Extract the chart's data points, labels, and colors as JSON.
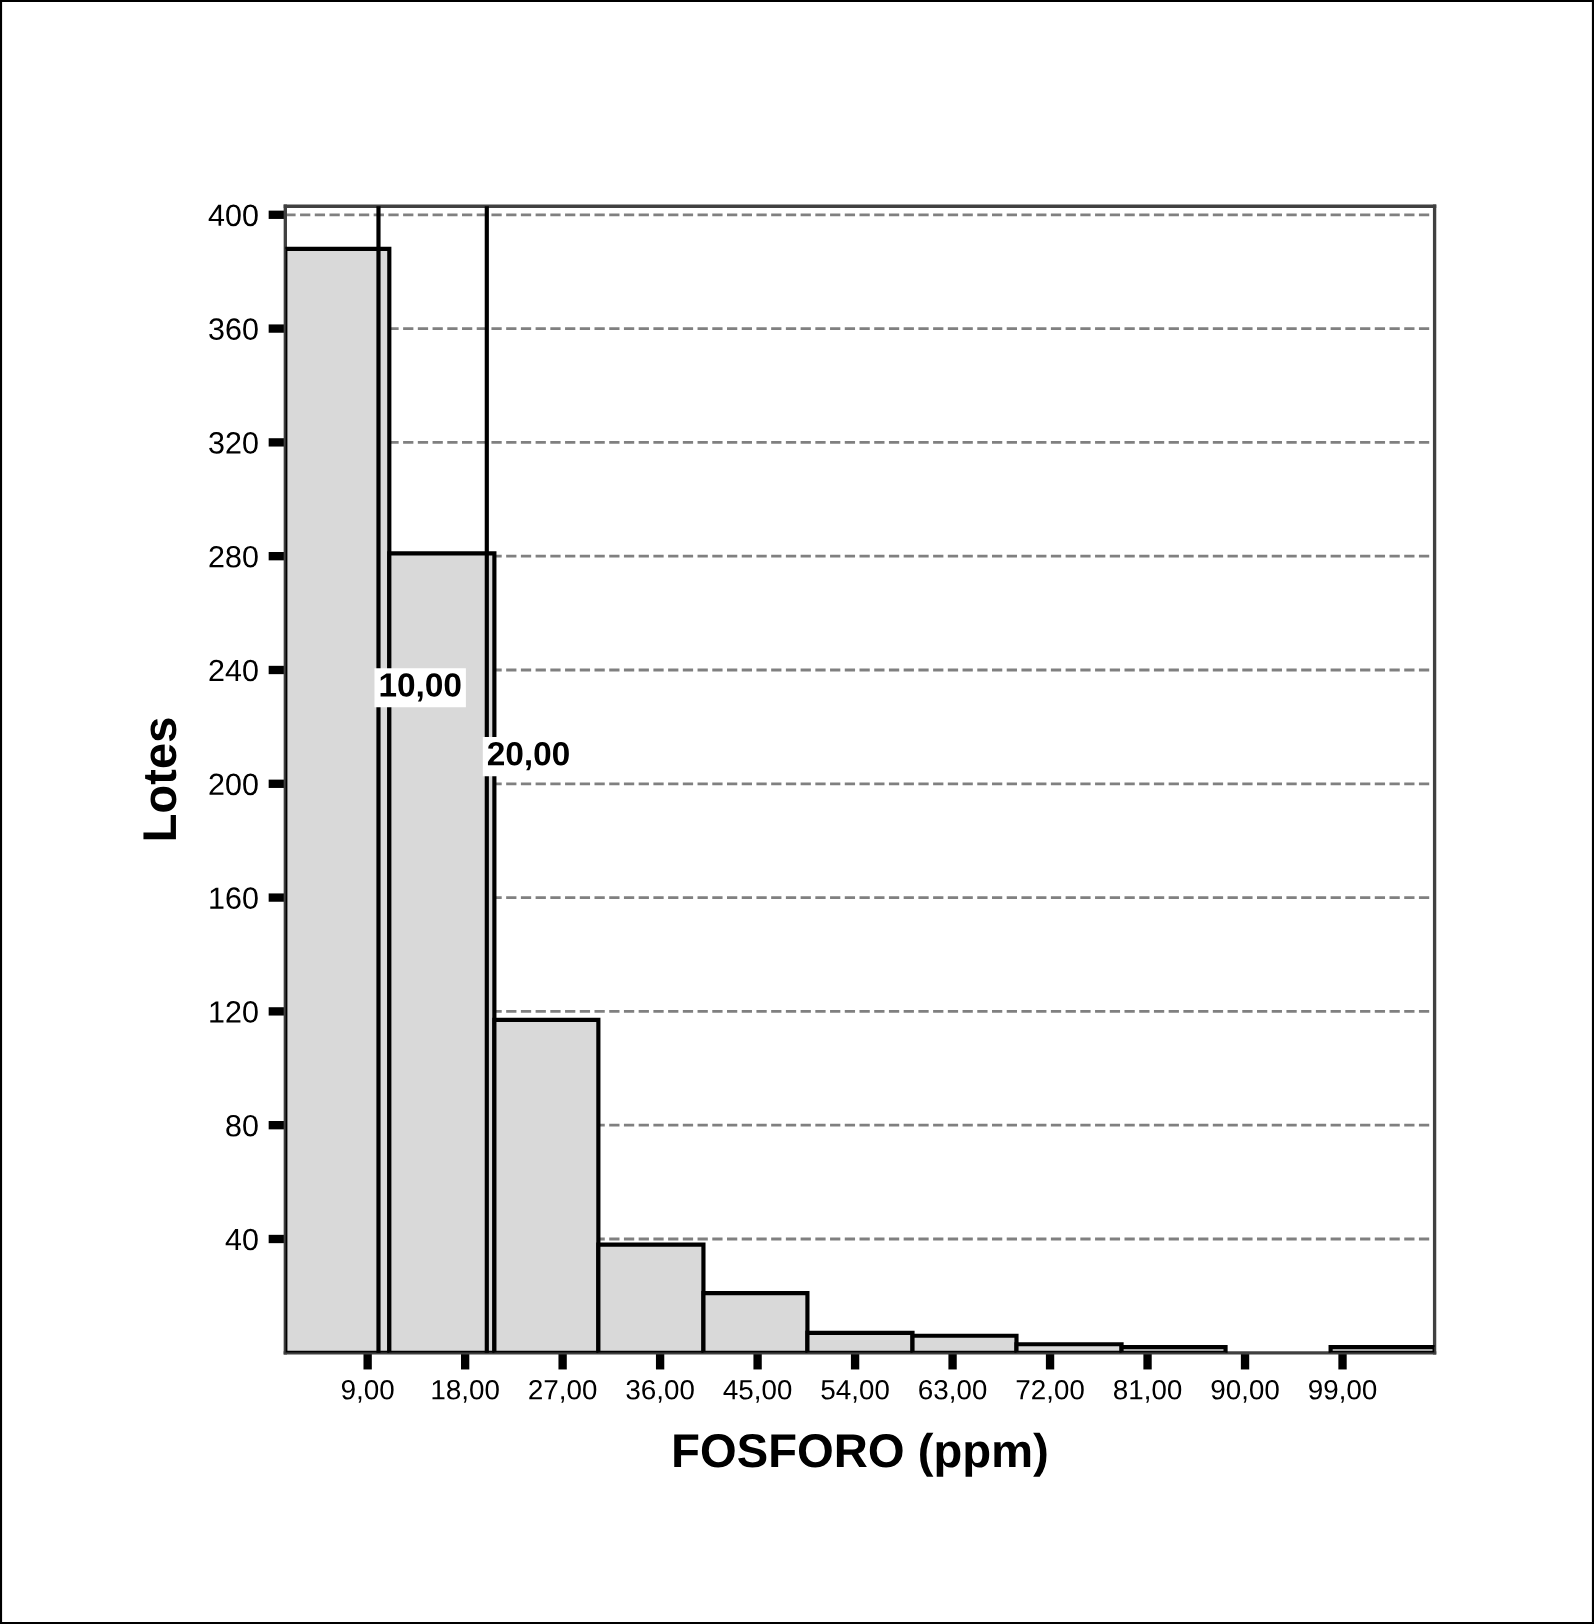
{
  "chart_data": {
    "type": "histogram",
    "xlabel": "FOSFORO (ppm)",
    "ylabel": "Lotes",
    "bins": [
      1.4,
      11.0,
      20.7,
      30.3,
      40.0,
      49.6,
      59.3,
      68.9,
      78.6,
      88.2,
      97.9,
      107.5
    ],
    "values": [
      388,
      281,
      117,
      38,
      21,
      7,
      6,
      3,
      2,
      0,
      2
    ],
    "color": "#d9d9d9",
    "xlim": [
      1.4,
      107.5
    ],
    "xticks": [
      {
        "value": 9,
        "label": "9,00"
      },
      {
        "value": 18,
        "label": "18,00"
      },
      {
        "value": 27,
        "label": "27,00"
      },
      {
        "value": 36,
        "label": "36,00"
      },
      {
        "value": 45,
        "label": "45,00"
      },
      {
        "value": 54,
        "label": "54,00"
      },
      {
        "value": 63,
        "label": "63,00"
      },
      {
        "value": 72,
        "label": "72,00"
      },
      {
        "value": 81,
        "label": "81,00"
      },
      {
        "value": 90,
        "label": "90,00"
      },
      {
        "value": 99,
        "label": "99,00"
      }
    ],
    "ylim": [
      0,
      403
    ],
    "yticks": [
      40,
      80,
      120,
      160,
      200,
      240,
      280,
      320,
      360,
      400
    ],
    "grid": "y",
    "ref_lines": [
      {
        "axis": "x",
        "value": 10,
        "label": "10,00",
        "color": "#000000"
      },
      {
        "axis": "x",
        "value": 20,
        "label": "20,00",
        "color": "#000000"
      }
    ]
  }
}
